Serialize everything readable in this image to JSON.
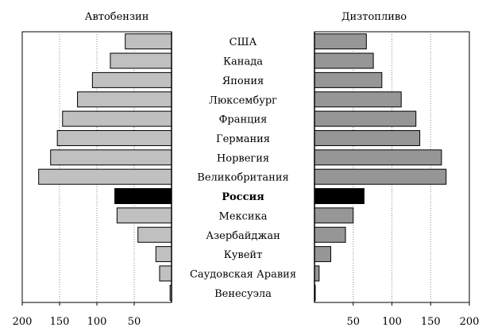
{
  "chart_data": [
    {
      "type": "bar",
      "title": "Автобензин",
      "orientation": "horizontal",
      "direction": "right-to-left",
      "xlim": [
        0,
        200
      ],
      "xticks": [
        "200",
        "150",
        "100",
        "50"
      ],
      "grid": "vertical dotted",
      "categories": [
        "США",
        "Канада",
        "Япония",
        "Люксембург",
        "Франция",
        "Германия",
        "Норвегия",
        "Великобритания",
        "Россия",
        "Мексика",
        "Азербайджан",
        "Кувейт",
        "Саудовская Аравия",
        "Венесуэла"
      ],
      "values": [
        62,
        82,
        106,
        126,
        146,
        153,
        162,
        178,
        76,
        73,
        45,
        21,
        16,
        2
      ],
      "bar_color": "#c0c0c0",
      "highlight": {
        "category": "Россия",
        "color": "#000000"
      }
    },
    {
      "type": "bar",
      "title": "Дизтопливо",
      "orientation": "horizontal",
      "direction": "left-to-right",
      "xlim": [
        0,
        200
      ],
      "xticks": [
        "50",
        "100",
        "150",
        "200"
      ],
      "grid": "vertical dotted",
      "categories": [
        "США",
        "Канада",
        "Япония",
        "Люксембург",
        "Франция",
        "Германия",
        "Норвегия",
        "Великобритания",
        "Россия",
        "Мексика",
        "Азербайджан",
        "Кувейт",
        "Саудовская Аравия",
        "Венесуэла"
      ],
      "values": [
        67,
        76,
        87,
        112,
        131,
        136,
        164,
        170,
        64,
        50,
        40,
        21,
        6,
        1
      ],
      "bar_color": "#969696",
      "highlight": {
        "category": "Россия",
        "color": "#000000"
      }
    }
  ],
  "labels": {
    "left_title": "Автобензин",
    "right_title": "Дизтопливо",
    "bold_category": "Россия"
  }
}
